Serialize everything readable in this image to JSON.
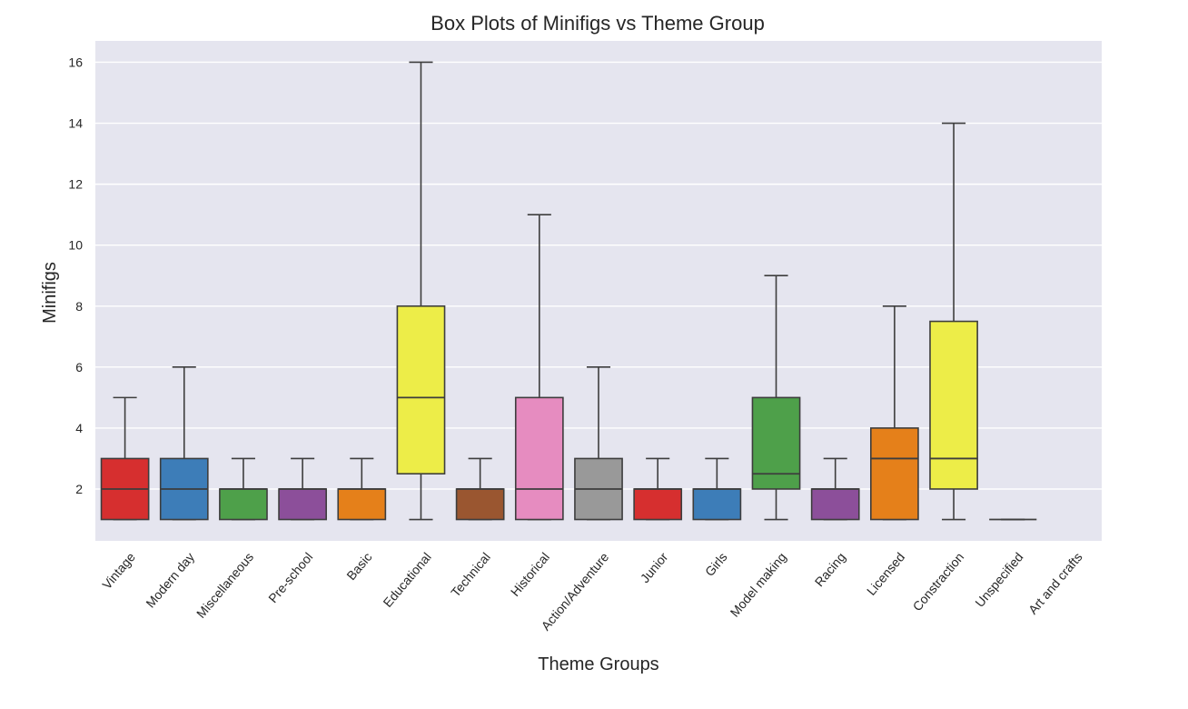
{
  "chart_data": {
    "type": "box",
    "title": "Box Plots of Minifigs vs Theme Group",
    "xlabel": "Theme Groups",
    "ylabel": "Minifigs",
    "ylim": [
      0.3,
      16.7
    ],
    "yticks": [
      2,
      4,
      6,
      8,
      10,
      12,
      14,
      16
    ],
    "grid": true,
    "legend": "none",
    "background_color": "#e5e5ef",
    "grid_color": "#ffffff",
    "edge_color": "#3d3d3d",
    "categories": [
      "Vintage",
      "Modern day",
      "Miscellaneous",
      "Pre-school",
      "Basic",
      "Educational",
      "Technical",
      "Historical",
      "Action/Adventure",
      "Junior",
      "Girls",
      "Model making",
      "Racing",
      "Licensed",
      "Constraction",
      "Unspecified",
      "Art and crafts"
    ],
    "boxes": [
      {
        "min": 1,
        "q1": 1,
        "median": 2,
        "q3": 3,
        "max": 5,
        "color": "#d62f2f"
      },
      {
        "min": 1,
        "q1": 1,
        "median": 2,
        "q3": 3,
        "max": 6,
        "color": "#3d7db8"
      },
      {
        "min": 1,
        "q1": 1,
        "median": 2,
        "q3": 2,
        "max": 3,
        "color": "#4ea04a"
      },
      {
        "min": 1,
        "q1": 1,
        "median": 2,
        "q3": 2,
        "max": 3,
        "color": "#8c4f9a"
      },
      {
        "min": 1,
        "q1": 1,
        "median": 2,
        "q3": 2,
        "max": 3,
        "color": "#e5801a"
      },
      {
        "min": 1,
        "q1": 2.5,
        "median": 5,
        "q3": 8,
        "max": 16,
        "color": "#eded48"
      },
      {
        "min": 1,
        "q1": 1,
        "median": 2,
        "q3": 2,
        "max": 3,
        "color": "#9a5630"
      },
      {
        "min": 1,
        "q1": 1,
        "median": 2,
        "q3": 5,
        "max": 11,
        "color": "#e68cc0"
      },
      {
        "min": 1,
        "q1": 1,
        "median": 2,
        "q3": 3,
        "max": 6,
        "color": "#999999"
      },
      {
        "min": 1,
        "q1": 1,
        "median": 2,
        "q3": 2,
        "max": 3,
        "color": "#d62f2f"
      },
      {
        "min": 1,
        "q1": 1,
        "median": 2,
        "q3": 2,
        "max": 3,
        "color": "#3d7db8"
      },
      {
        "min": 1,
        "q1": 2,
        "median": 2.5,
        "q3": 5,
        "max": 9,
        "color": "#4ea04a"
      },
      {
        "min": 1,
        "q1": 1,
        "median": 2,
        "q3": 2,
        "max": 3,
        "color": "#8c4f9a"
      },
      {
        "min": 1,
        "q1": 1,
        "median": 3,
        "q3": 4,
        "max": 8,
        "color": "#e5801a"
      },
      {
        "min": 1,
        "q1": 2,
        "median": 3,
        "q3": 7.5,
        "max": 14,
        "color": "#eded48"
      },
      {
        "min": 1,
        "q1": 1,
        "median": 1,
        "q3": 1,
        "max": 1,
        "color": "#9a5630"
      },
      null
    ]
  }
}
